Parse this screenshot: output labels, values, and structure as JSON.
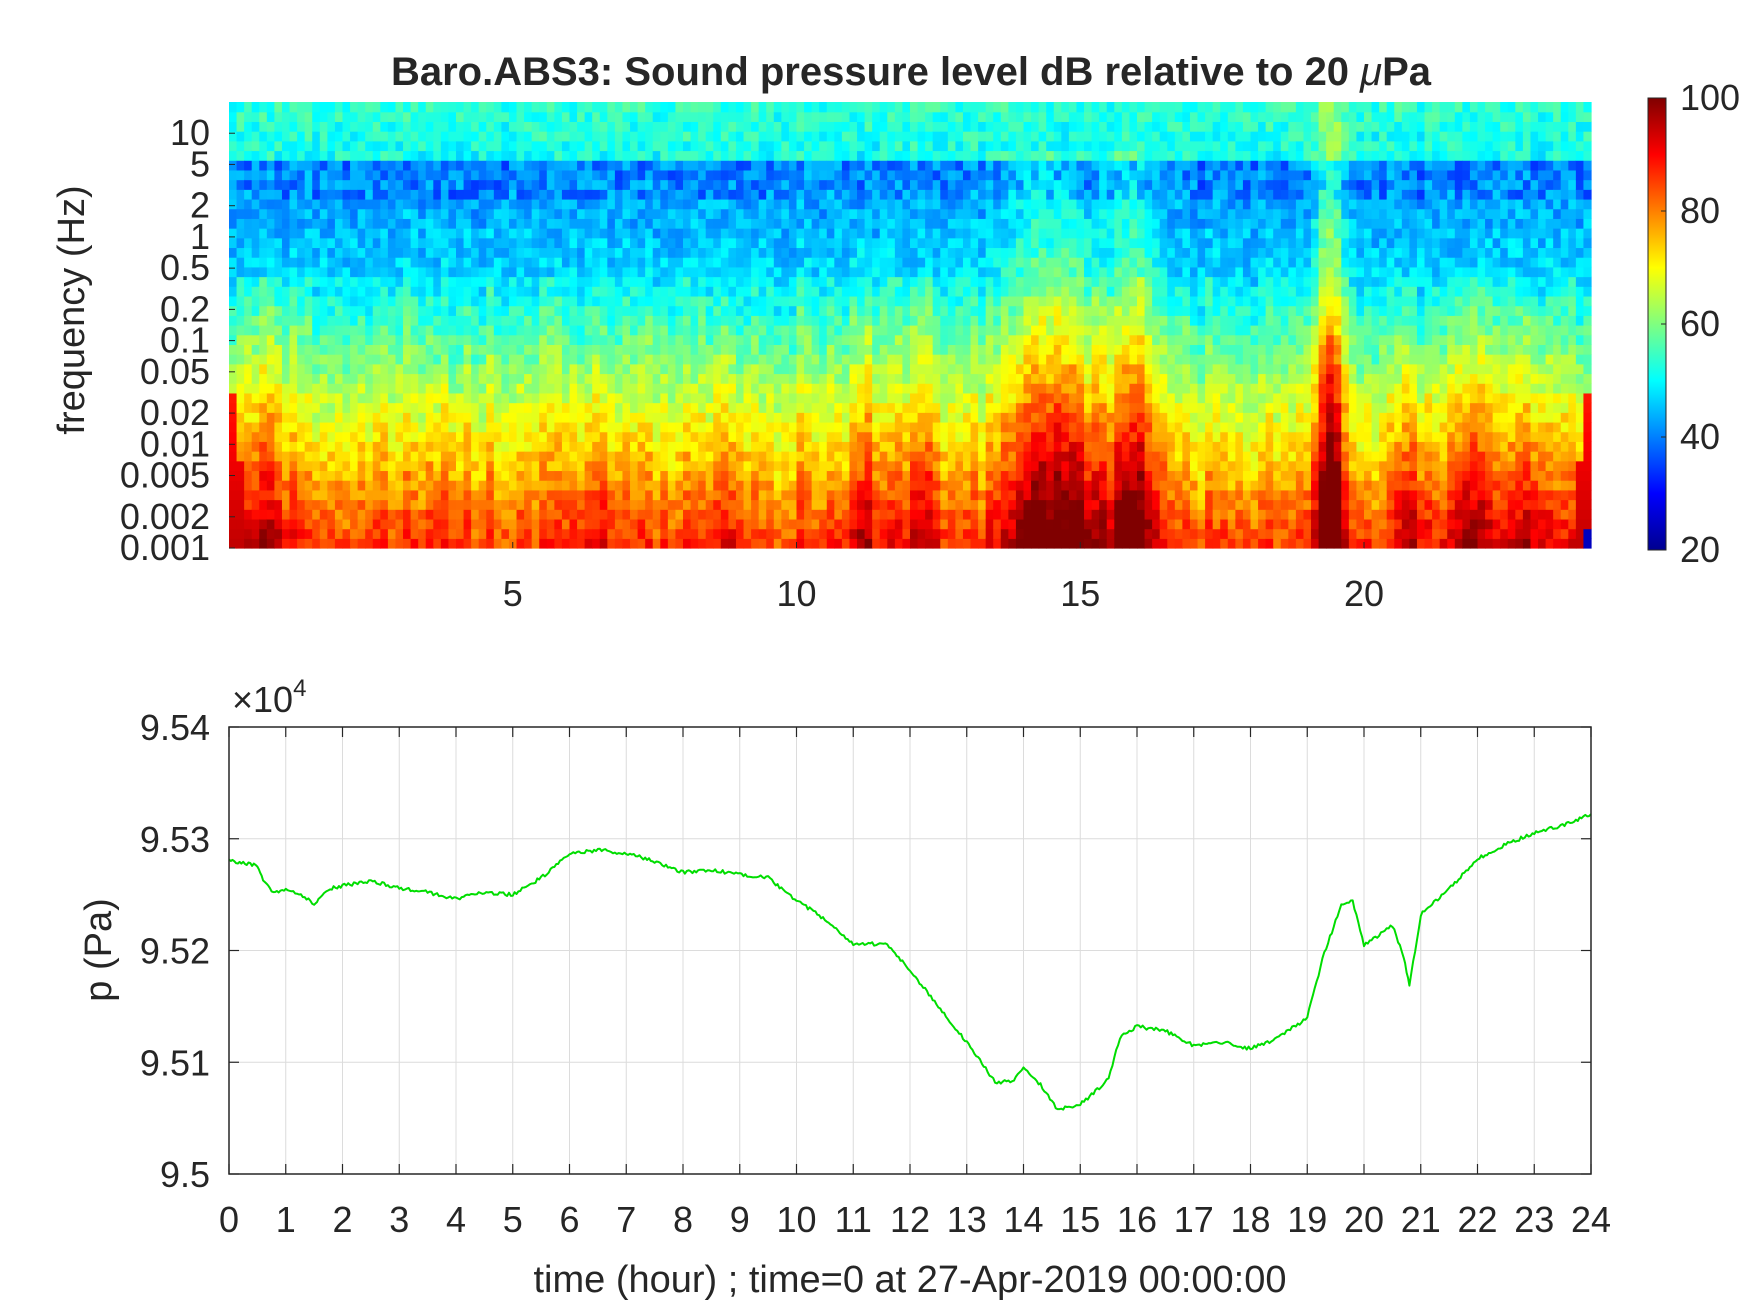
{
  "chart_data": [
    {
      "type": "heatmap",
      "title": "Baro.ABS3: Sound pressure level dB relative to 20 μPa",
      "title_parts": [
        "Baro.ABS3: Sound pressure level dB relative to 20 ",
        "μ",
        "Pa"
      ],
      "ylabel": "frequency (Hz)",
      "xlabel": "",
      "xlim": [
        0,
        24
      ],
      "x_ticks": [
        5,
        10,
        15,
        20
      ],
      "y_scale": "log",
      "ylim": [
        0.001,
        20
      ],
      "y_ticks": [
        0.001,
        0.002,
        0.005,
        0.01,
        0.02,
        0.05,
        0.1,
        0.2,
        0.5,
        1,
        2,
        5,
        10
      ],
      "y_tick_labels": [
        "0.001",
        "0.002",
        "0.005",
        "0.01",
        "0.02",
        "0.05",
        "0.1",
        "0.2",
        "0.5",
        "1",
        "2",
        "5",
        "10"
      ],
      "colormap": "jet",
      "colorbar": {
        "min": 20,
        "max": 100,
        "ticks": [
          20,
          40,
          60,
          80,
          100
        ]
      },
      "cone_of_influence": true,
      "burst_events": [
        {
          "x": 0.6,
          "amp": 10,
          "width": 0.5,
          "top": 0.6
        },
        {
          "x": 3.8,
          "amp": 5,
          "width": 0.3,
          "top": 0.4
        },
        {
          "x": 6.5,
          "amp": 6,
          "width": 0.4,
          "top": 0.45
        },
        {
          "x": 8.9,
          "amp": 5,
          "width": 0.3,
          "top": 0.5
        },
        {
          "x": 11.2,
          "amp": 14,
          "width": 0.25,
          "top": 0.7
        },
        {
          "x": 12.2,
          "amp": 10,
          "width": 0.35,
          "top": 0.6
        },
        {
          "x": 14.2,
          "amp": 20,
          "width": 0.6,
          "top": 0.9
        },
        {
          "x": 14.9,
          "amp": 18,
          "width": 0.4,
          "top": 0.8
        },
        {
          "x": 15.9,
          "amp": 24,
          "width": 0.45,
          "top": 0.9
        },
        {
          "x": 19.4,
          "amp": 34,
          "width": 0.25,
          "top": 1.0
        },
        {
          "x": 20.8,
          "amp": 10,
          "width": 0.3,
          "top": 0.5
        },
        {
          "x": 21.9,
          "amp": 14,
          "width": 0.5,
          "top": 0.6
        },
        {
          "x": 23.0,
          "amp": 10,
          "width": 0.4,
          "top": 0.55
        }
      ]
    },
    {
      "type": "line",
      "xlabel": "time (hour) ; time=0 at 27-Apr-2019 00:00:00",
      "ylabel": "p (Pa)",
      "xlim": [
        0,
        24
      ],
      "ylim": [
        95000,
        95400
      ],
      "x_ticks": [
        0,
        1,
        2,
        3,
        4,
        5,
        6,
        7,
        8,
        9,
        10,
        11,
        12,
        13,
        14,
        15,
        16,
        17,
        18,
        19,
        20,
        21,
        22,
        23,
        24
      ],
      "y_ticks": [
        95000,
        95100,
        95200,
        95300,
        95400
      ],
      "y_tick_labels": [
        "9.5",
        "9.51",
        "9.52",
        "9.53",
        "9.54"
      ],
      "y_exponent_label": {
        "base": "×10",
        "exp": "4"
      },
      "grid": true,
      "color": "#00dd00",
      "series": [
        {
          "x": [
            0,
            0.25,
            0.5,
            0.6,
            0.75,
            1.0,
            1.2,
            1.5,
            1.6,
            1.75,
            2.0,
            2.5,
            3.0,
            3.5,
            4.0,
            4.5,
            5.0,
            5.5,
            6.0,
            6.5,
            7.0,
            7.5,
            8.0,
            8.5,
            9.0,
            9.5,
            10.0,
            10.5,
            11.0,
            11.3,
            11.6,
            12.0,
            12.5,
            13.0,
            13.5,
            13.8,
            14.0,
            14.3,
            14.6,
            15.0,
            15.5,
            15.7,
            16.0,
            16.5,
            17.0,
            17.5,
            18.0,
            18.5,
            19.0,
            19.3,
            19.6,
            19.8,
            20.0,
            20.3,
            20.5,
            20.7,
            20.8,
            21.0,
            21.5,
            22.0,
            22.5,
            23.0,
            23.5,
            24.0
          ],
          "y": [
            95281,
            95278,
            95276,
            95262,
            95253,
            95254,
            95252,
            95242,
            95246,
            95255,
            95258,
            95262,
            95256,
            95252,
            95246,
            95252,
            95250,
            95265,
            95286,
            95290,
            95287,
            95280,
            95270,
            95272,
            95268,
            95265,
            95245,
            95228,
            95205,
            95206,
            95206,
            95182,
            95150,
            95118,
            95082,
            95083,
            95095,
            95080,
            95058,
            95062,
            95085,
            95122,
            95132,
            95128,
            95115,
            95118,
            95112,
            95122,
            95140,
            95198,
            95240,
            95245,
            95205,
            95215,
            95222,
            95195,
            95168,
            95232,
            95255,
            95282,
            95295,
            95305,
            95312,
            95322
          ]
        }
      ]
    }
  ]
}
